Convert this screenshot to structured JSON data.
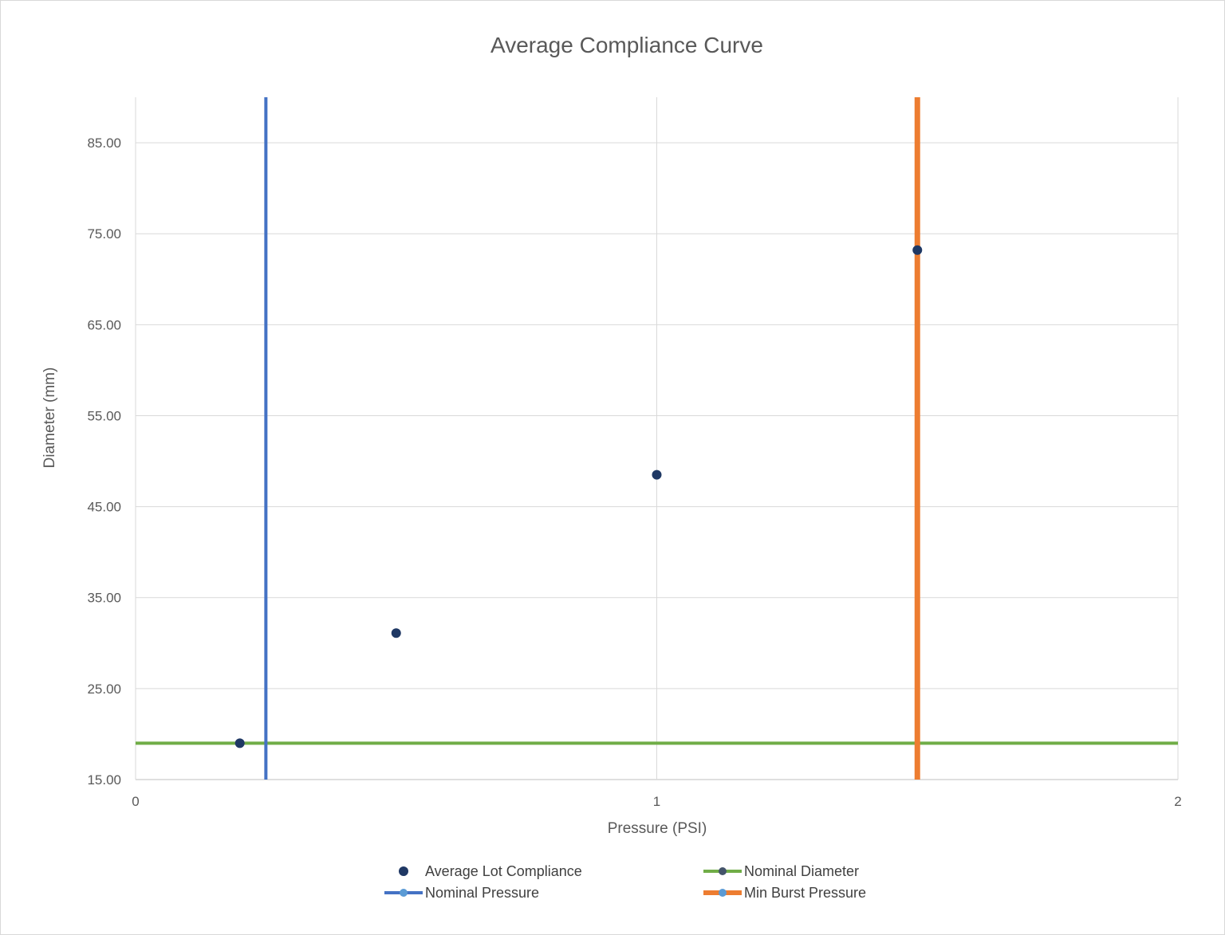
{
  "chart_data": {
    "type": "scatter",
    "title": "Average Compliance Curve",
    "xlabel": "Pressure (PSI)",
    "ylabel": "Diameter (mm)",
    "xlim": [
      0,
      2
    ],
    "ylim": [
      15,
      90
    ],
    "x_ticks": [
      0,
      1,
      2
    ],
    "x_tick_labels": [
      "0",
      "1",
      "2"
    ],
    "y_ticks": [
      15,
      25,
      35,
      45,
      55,
      65,
      75,
      85
    ],
    "y_tick_labels": [
      "15.00",
      "25.00",
      "35.00",
      "45.00",
      "55.00",
      "65.00",
      "75.00",
      "85.00"
    ],
    "grid": true,
    "legend_position": "bottom",
    "series": [
      {
        "name": "Average Lot Compliance",
        "kind": "markers",
        "color": "#1f3864",
        "points": [
          [
            0.2,
            19.0
          ],
          [
            0.5,
            31.1
          ],
          [
            1.0,
            48.5
          ],
          [
            1.5,
            73.2
          ]
        ]
      },
      {
        "name": "Nominal Diameter",
        "kind": "hline",
        "color": "#70ad47",
        "marker_color": "#44546a",
        "y": 19.0
      },
      {
        "name": "Nominal Pressure",
        "kind": "vline",
        "color": "#4472c4",
        "marker_color": "#5b9bd5",
        "x": 0.25
      },
      {
        "name": "Min Burst Pressure",
        "kind": "vline",
        "color": "#ed7d31",
        "marker_color": "#5b9bd5",
        "x": 1.5
      }
    ]
  }
}
